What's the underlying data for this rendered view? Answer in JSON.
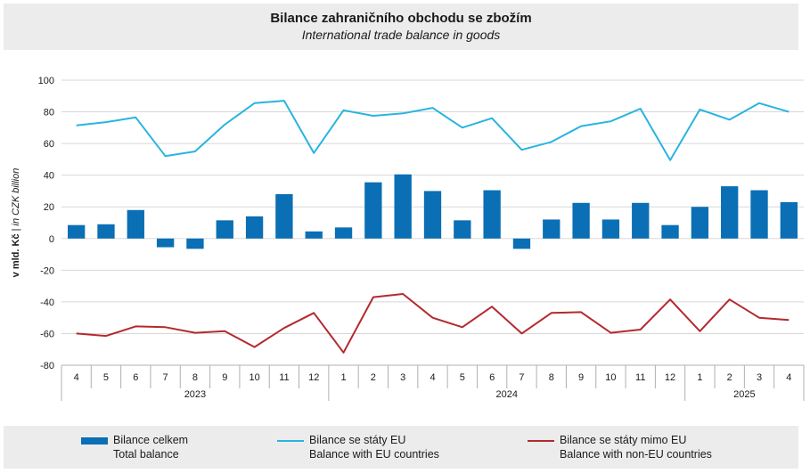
{
  "title_cz": "Bilance zahraničního obchodu se zbožím",
  "title_en": "International trade balance in goods",
  "y_axis_label_cz": "v mld. Kč",
  "y_axis_label_sep": " | ",
  "y_axis_label_en": "in CZK billion",
  "colors": {
    "bar": "#0a6fb4",
    "eu": "#29b4e0",
    "noneu": "#b32a2e",
    "grid": "#d8d8d8"
  },
  "chart_data": {
    "type": "bar",
    "ylim": [
      -80,
      100
    ],
    "ytick_step": 20,
    "grid": true,
    "legend_position": "bottom",
    "categories": [
      "4",
      "5",
      "6",
      "7",
      "8",
      "9",
      "10",
      "11",
      "12",
      "1",
      "2",
      "3",
      "4",
      "5",
      "6",
      "7",
      "8",
      "9",
      "10",
      "11",
      "12",
      "1",
      "2",
      "3",
      "4"
    ],
    "years": [
      {
        "label": "2023",
        "count": 9
      },
      {
        "label": "2024",
        "count": 12
      },
      {
        "label": "2025",
        "count": 4
      }
    ],
    "series": [
      {
        "name_cz": "Bilance celkem",
        "name_en": "Total balance",
        "kind": "bar",
        "values": [
          8.5,
          9,
          18,
          -5.5,
          -6.5,
          11.5,
          14,
          28,
          4.5,
          7,
          35.5,
          40.5,
          30,
          11.5,
          30.5,
          -6.5,
          12,
          22.5,
          12,
          22.5,
          8.5,
          20,
          33,
          30.5,
          23
        ]
      },
      {
        "name_cz": "Bilance se státy EU",
        "name_en": "Balance with EU countries",
        "kind": "line",
        "values": [
          71.5,
          73.5,
          76.5,
          52,
          55,
          72,
          85.5,
          87,
          54,
          81,
          77.5,
          79,
          82.5,
          70,
          76,
          56,
          61,
          71,
          74,
          82,
          49.5,
          81.5,
          75,
          85.5,
          80
        ]
      },
      {
        "name_cz": "Bilance se státy mimo EU",
        "name_en": "Balance with non-EU countries",
        "kind": "line",
        "values": [
          -60,
          -61.5,
          -55.5,
          -56,
          -59.5,
          -58.5,
          -68.5,
          -56.5,
          -47,
          -72,
          -37,
          -35,
          -50,
          -56,
          -43,
          -60,
          -47,
          -46.5,
          -59.5,
          -57.5,
          -38.5,
          -58.5,
          -38.5,
          -50,
          -51.5
        ]
      }
    ]
  }
}
